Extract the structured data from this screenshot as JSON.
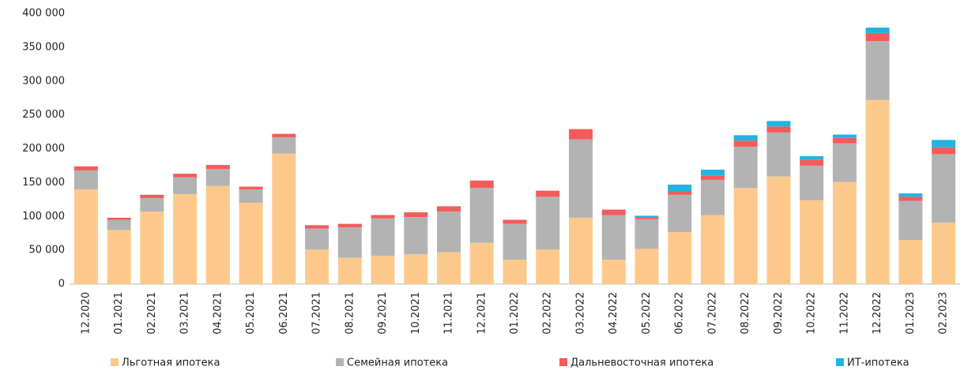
{
  "chart_data": {
    "type": "stacked_bar",
    "categories": [
      "12.2020",
      "01.2021",
      "02.2021",
      "03.2021",
      "04.2021",
      "05.2021",
      "06.2021",
      "07.2021",
      "08.2021",
      "09.2021",
      "10.2021",
      "11.2021",
      "12.2021",
      "01.2022",
      "02.2022",
      "03.2022",
      "04.2022",
      "05.2022",
      "06.2022",
      "07.2022",
      "08.2022",
      "09.2022",
      "10.2022",
      "11.2022",
      "12.2022",
      "01.2023",
      "02.2023"
    ],
    "series": [
      {
        "name": "Льготная ипотека",
        "color": "#fdc98a",
        "values": [
          140000,
          80000,
          107000,
          133000,
          145000,
          120000,
          193000,
          51000,
          39000,
          42000,
          44000,
          47000,
          61000,
          36000,
          51000,
          98000,
          36000,
          52000,
          77000,
          102000,
          142000,
          159000,
          124000,
          151000,
          272000,
          65000,
          91000
        ]
      },
      {
        "name": "Семейная ипотека",
        "color": "#b3b3b3",
        "values": [
          28000,
          15000,
          20000,
          25000,
          25000,
          20000,
          24000,
          31000,
          45000,
          55000,
          55000,
          60000,
          81000,
          53000,
          78000,
          116000,
          66000,
          44000,
          55000,
          52000,
          61000,
          65000,
          51000,
          57000,
          87000,
          58000,
          101000
        ]
      },
      {
        "name": "Дальневосточная ипотека",
        "color": "#f45b5b",
        "values": [
          6000,
          3000,
          5000,
          5000,
          6000,
          4000,
          5000,
          5000,
          5000,
          5000,
          7000,
          8000,
          11000,
          6000,
          9000,
          15000,
          8000,
          3000,
          5000,
          6000,
          9000,
          9000,
          9000,
          8000,
          12000,
          6000,
          10000
        ]
      },
      {
        "name": "ИТ-ипотека",
        "color": "#1fb5e0",
        "values": [
          0,
          0,
          0,
          0,
          0,
          0,
          0,
          0,
          0,
          0,
          0,
          0,
          0,
          0,
          0,
          0,
          0,
          2000,
          10000,
          9000,
          8000,
          8000,
          5000,
          5000,
          8000,
          5000,
          11000
        ]
      }
    ],
    "ylim": [
      0,
      400000
    ],
    "yticks": [
      {
        "value": 0,
        "label": "0"
      },
      {
        "value": 50000,
        "label": "50 000"
      },
      {
        "value": 100000,
        "label": "100 000"
      },
      {
        "value": 150000,
        "label": "150 000"
      },
      {
        "value": 200000,
        "label": "200 000"
      },
      {
        "value": 250000,
        "label": "250 000"
      },
      {
        "value": 300000,
        "label": "300 000"
      },
      {
        "value": 350000,
        "label": "350 000"
      },
      {
        "value": 400000,
        "label": "400 000"
      }
    ],
    "legend": "bottom"
  }
}
